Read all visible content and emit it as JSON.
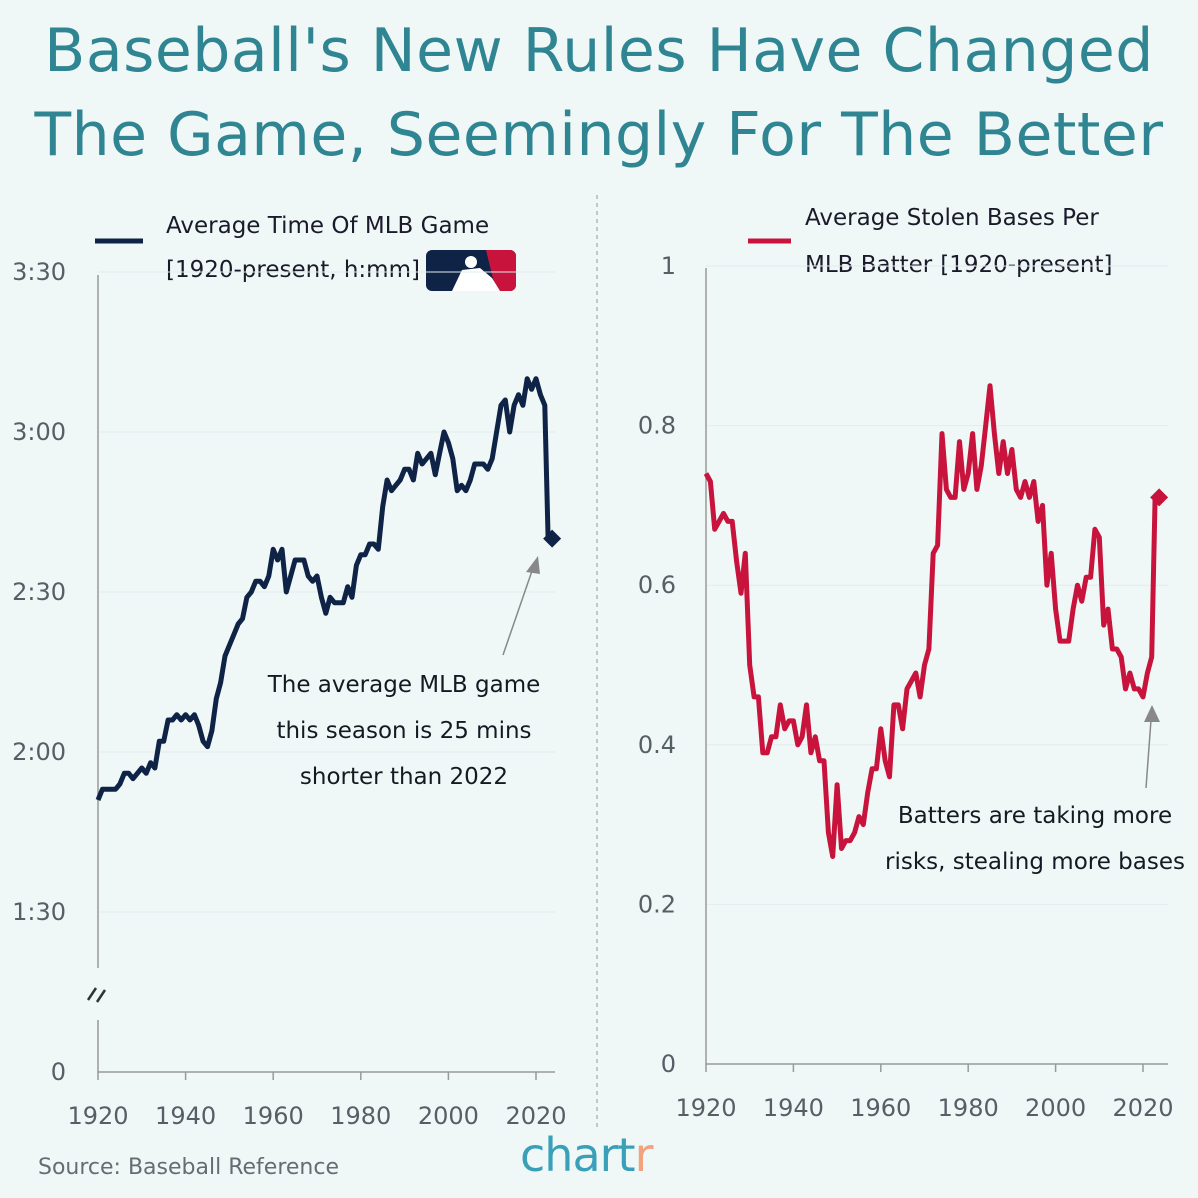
{
  "title": [
    "Baseball's New Rules Have Changed",
    "The Game, Seemingly For The Better"
  ],
  "source": "Source: Baseball Reference",
  "brand": {
    "text": "chart",
    "accent": "r"
  },
  "colors": {
    "background": "#eff8f7",
    "title": "#2f8592",
    "navy": "#0f2346",
    "red": "#c8143c"
  },
  "icons": [
    "mlb-logo"
  ],
  "chart_data": [
    {
      "type": "line",
      "legend": [
        "Average Time Of MLB Game",
        "[1920-present, h:mm]"
      ],
      "ylabel_units": "minutes",
      "yticks": [
        {
          "value": 0,
          "label": "0"
        },
        {
          "value": 90,
          "label": "1:30"
        },
        {
          "value": 120,
          "label": "2:00"
        },
        {
          "value": 150,
          "label": "2:30"
        },
        {
          "value": 180,
          "label": "3:00"
        },
        {
          "value": 210,
          "label": "3:30"
        }
      ],
      "xticks": [
        1920,
        1940,
        1960,
        1980,
        2000,
        2020
      ],
      "axis_break": true,
      "annotation": [
        "The average MLB game",
        "this season is 25 mins",
        "shorter than 2022"
      ],
      "x_start": 1920,
      "values": [
        111,
        113,
        113,
        113,
        113,
        114,
        116,
        116,
        115,
        116,
        117,
        116,
        118,
        117,
        122,
        122,
        126,
        126,
        127,
        126,
        127,
        126,
        127,
        125,
        122,
        121,
        124,
        130,
        133,
        138,
        140,
        142,
        144,
        145,
        149,
        150,
        152,
        152,
        151,
        153,
        158,
        156,
        158,
        150,
        153,
        156,
        156,
        156,
        153,
        152,
        153,
        149,
        146,
        149,
        148,
        148,
        148,
        151,
        149,
        155,
        157,
        157,
        159,
        159,
        158,
        166,
        171,
        169,
        170,
        171,
        173,
        173,
        171,
        176,
        174,
        175,
        176,
        172,
        176,
        180,
        178,
        175,
        169,
        170,
        169,
        171,
        174,
        174,
        174,
        173,
        175,
        180,
        185,
        186,
        180,
        185,
        187,
        185,
        190,
        188,
        190,
        187,
        185,
        160
      ],
      "highlight": {
        "year": 2023,
        "value": 160
      }
    },
    {
      "type": "line",
      "legend": [
        "Average Stolen Bases Per",
        "MLB Batter",
        "[1920-present]"
      ],
      "yticks": [
        {
          "value": 0,
          "label": "0"
        },
        {
          "value": 0.2,
          "label": "0.2"
        },
        {
          "value": 0.4,
          "label": "0.4"
        },
        {
          "value": 0.6,
          "label": "0.6"
        },
        {
          "value": 0.8,
          "label": "0.8"
        },
        {
          "value": 1,
          "label": "1"
        }
      ],
      "xticks": [
        1920,
        1940,
        1960,
        1980,
        2000,
        2020
      ],
      "annotation": [
        "Batters are taking more",
        "risks, stealing more bases"
      ],
      "x_start": 1920,
      "values": [
        0.74,
        0.73,
        0.67,
        0.68,
        0.69,
        0.68,
        0.68,
        0.63,
        0.59,
        0.64,
        0.5,
        0.46,
        0.46,
        0.39,
        0.39,
        0.41,
        0.41,
        0.45,
        0.42,
        0.43,
        0.43,
        0.4,
        0.41,
        0.45,
        0.39,
        0.41,
        0.38,
        0.38,
        0.29,
        0.26,
        0.35,
        0.27,
        0.28,
        0.28,
        0.29,
        0.31,
        0.3,
        0.34,
        0.37,
        0.37,
        0.42,
        0.38,
        0.36,
        0.45,
        0.45,
        0.42,
        0.47,
        0.48,
        0.49,
        0.46,
        0.5,
        0.52,
        0.64,
        0.65,
        0.79,
        0.72,
        0.71,
        0.71,
        0.78,
        0.72,
        0.74,
        0.79,
        0.72,
        0.75,
        0.8,
        0.85,
        0.79,
        0.74,
        0.78,
        0.74,
        0.77,
        0.72,
        0.71,
        0.73,
        0.71,
        0.73,
        0.68,
        0.7,
        0.6,
        0.64,
        0.57,
        0.53,
        0.53,
        0.53,
        0.57,
        0.6,
        0.58,
        0.61,
        0.61,
        0.67,
        0.66,
        0.55,
        0.57,
        0.52,
        0.52,
        0.51,
        0.47,
        0.49,
        0.47,
        0.47,
        0.46,
        0.49,
        0.51,
        0.71
      ],
      "highlight": {
        "year": 2023,
        "value": 0.71
      }
    }
  ]
}
